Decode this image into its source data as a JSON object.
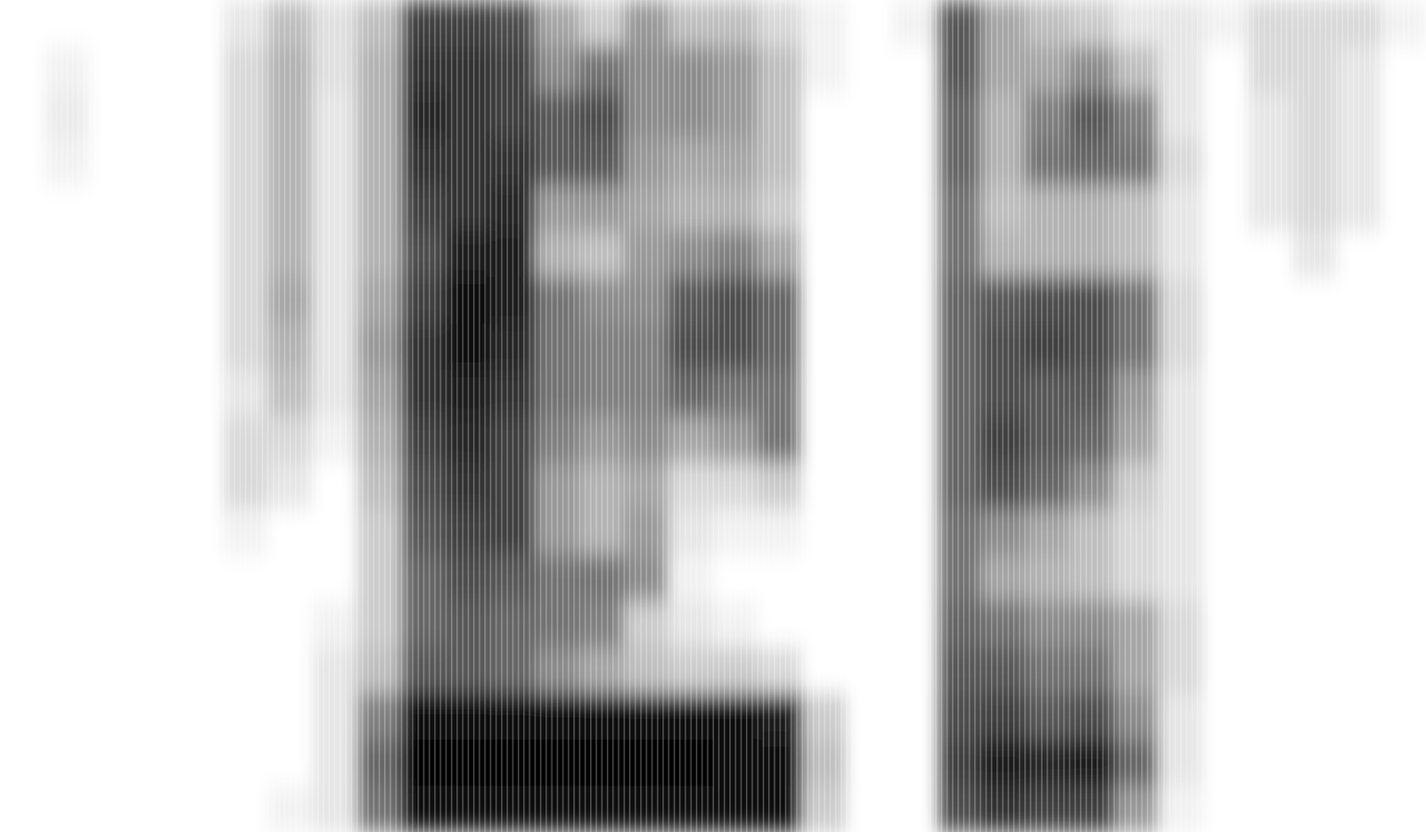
{
  "chart_data": {
    "type": "heatmap",
    "color": "#000000",
    "tick_labels": false,
    "grid": false,
    "cell_range": [
      0,
      100
    ],
    "cells": [
      [
        0,
        0,
        0,
        0,
        0,
        10,
        25,
        12,
        25,
        75,
        75,
        70,
        35,
        20,
        40,
        25,
        25,
        15,
        5,
        0,
        5,
        65,
        35,
        25,
        20,
        10,
        10,
        5,
        15,
        15,
        15,
        5
      ],
      [
        0,
        5,
        0,
        0,
        0,
        15,
        30,
        12,
        30,
        80,
        80,
        75,
        45,
        55,
        45,
        45,
        40,
        25,
        5,
        0,
        0,
        65,
        35,
        35,
        45,
        25,
        10,
        0,
        15,
        15,
        10,
        0
      ],
      [
        0,
        8,
        0,
        0,
        0,
        15,
        30,
        10,
        30,
        85,
        80,
        75,
        65,
        70,
        45,
        45,
        40,
        25,
        0,
        0,
        0,
        60,
        30,
        50,
        65,
        50,
        10,
        0,
        10,
        15,
        10,
        0
      ],
      [
        0,
        5,
        0,
        0,
        0,
        15,
        30,
        10,
        30,
        80,
        80,
        80,
        65,
        65,
        40,
        35,
        35,
        25,
        0,
        0,
        0,
        60,
        30,
        55,
        60,
        55,
        15,
        0,
        10,
        15,
        10,
        0
      ],
      [
        0,
        0,
        0,
        0,
        0,
        15,
        30,
        10,
        30,
        75,
        80,
        85,
        40,
        40,
        35,
        30,
        30,
        20,
        0,
        0,
        0,
        55,
        25,
        30,
        30,
        25,
        10,
        0,
        10,
        15,
        10,
        0
      ],
      [
        0,
        0,
        0,
        0,
        0,
        15,
        30,
        10,
        30,
        70,
        90,
        90,
        30,
        25,
        40,
        45,
        50,
        35,
        0,
        0,
        0,
        55,
        30,
        30,
        30,
        25,
        10,
        0,
        0,
        10,
        0,
        0
      ],
      [
        0,
        0,
        0,
        0,
        0,
        15,
        35,
        10,
        35,
        75,
        95,
        90,
        55,
        45,
        45,
        65,
        70,
        60,
        0,
        0,
        0,
        60,
        65,
        70,
        70,
        55,
        15,
        0,
        0,
        0,
        0,
        0
      ],
      [
        0,
        0,
        0,
        0,
        0,
        15,
        30,
        10,
        40,
        80,
        95,
        85,
        55,
        50,
        50,
        70,
        70,
        60,
        0,
        0,
        0,
        60,
        70,
        75,
        70,
        55,
        15,
        0,
        0,
        0,
        0,
        0
      ],
      [
        0,
        0,
        0,
        0,
        0,
        10,
        25,
        10,
        35,
        80,
        90,
        80,
        55,
        50,
        50,
        60,
        55,
        55,
        0,
        0,
        0,
        60,
        70,
        65,
        65,
        40,
        10,
        0,
        0,
        0,
        0,
        0
      ],
      [
        0,
        0,
        0,
        0,
        0,
        15,
        15,
        5,
        30,
        75,
        85,
        75,
        50,
        40,
        45,
        35,
        40,
        55,
        0,
        0,
        0,
        60,
        75,
        65,
        60,
        35,
        10,
        0,
        0,
        0,
        0,
        0
      ],
      [
        0,
        0,
        0,
        0,
        0,
        15,
        10,
        0,
        25,
        70,
        80,
        75,
        40,
        30,
        35,
        15,
        15,
        20,
        0,
        0,
        0,
        60,
        70,
        60,
        45,
        20,
        10,
        0,
        0,
        0,
        0,
        0
      ],
      [
        0,
        0,
        0,
        0,
        0,
        5,
        0,
        0,
        20,
        65,
        75,
        75,
        40,
        30,
        40,
        10,
        5,
        5,
        0,
        0,
        0,
        55,
        45,
        35,
        25,
        15,
        10,
        0,
        0,
        0,
        0,
        0
      ],
      [
        0,
        0,
        0,
        0,
        0,
        0,
        0,
        0,
        20,
        60,
        70,
        65,
        55,
        55,
        45,
        5,
        0,
        0,
        0,
        0,
        0,
        55,
        35,
        30,
        25,
        15,
        10,
        0,
        0,
        0,
        0,
        0
      ],
      [
        0,
        0,
        0,
        0,
        0,
        0,
        0,
        5,
        20,
        60,
        65,
        60,
        55,
        50,
        20,
        10,
        5,
        0,
        0,
        0,
        0,
        60,
        55,
        45,
        45,
        35,
        15,
        0,
        0,
        0,
        0,
        0
      ],
      [
        0,
        0,
        0,
        0,
        0,
        0,
        0,
        10,
        25,
        65,
        65,
        60,
        45,
        35,
        25,
        20,
        20,
        15,
        0,
        0,
        0,
        65,
        65,
        55,
        55,
        35,
        15,
        0,
        0,
        0,
        0,
        0
      ],
      [
        0,
        0,
        0,
        0,
        0,
        0,
        0,
        10,
        50,
        95,
        95,
        95,
        95,
        95,
        95,
        95,
        95,
        90,
        20,
        0,
        0,
        70,
        75,
        65,
        70,
        45,
        10,
        0,
        0,
        0,
        0,
        0
      ],
      [
        0,
        0,
        0,
        0,
        0,
        0,
        0,
        10,
        60,
        100,
        100,
        100,
        100,
        100,
        100,
        100,
        95,
        95,
        25,
        0,
        0,
        75,
        90,
        85,
        90,
        60,
        10,
        0,
        0,
        0,
        0,
        0
      ],
      [
        0,
        0,
        0,
        0,
        0,
        0,
        5,
        10,
        55,
        95,
        95,
        95,
        95,
        95,
        95,
        95,
        95,
        95,
        20,
        0,
        0,
        70,
        80,
        75,
        75,
        40,
        5,
        0,
        0,
        0,
        0,
        0
      ]
    ]
  }
}
